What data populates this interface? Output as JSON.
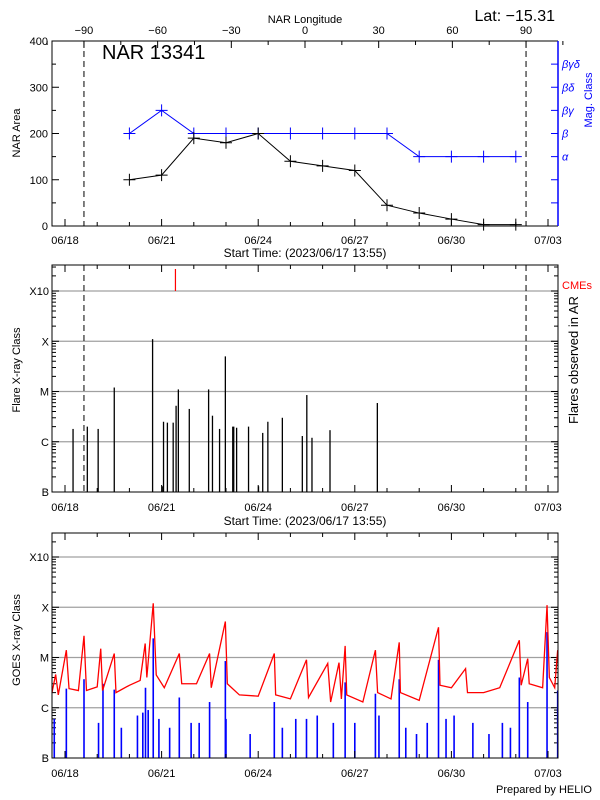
{
  "header": {
    "lat_label": "Lat: −15.31"
  },
  "colors": {
    "area": "#000000",
    "mag_class": "#0000ff",
    "cme": "#ff0000",
    "goes_long": "#ff0000",
    "goes_short": "#0000ff",
    "grid": "#a0a0a0"
  },
  "chart_data": [
    {
      "type": "line",
      "title": "NAR 13341",
      "top_axis_label": "NAR Longitude",
      "top_ticks": [
        -90,
        -60,
        -30,
        0,
        30,
        60,
        90
      ],
      "limb_markers_longitude": [
        -90,
        90
      ],
      "xlabel": "Start Time: (2023/06/17 13:55)",
      "x_tick_labels": [
        "06/18",
        "06/21",
        "06/24",
        "06/27",
        "06/30",
        "07/03"
      ],
      "ylabel": "NAR Area",
      "ylim": [
        0,
        400
      ],
      "y_ticks": [
        0,
        100,
        200,
        300,
        400
      ],
      "y2label": "Mag. Class",
      "y2_ticks": [
        "α",
        "β",
        "βγ",
        "βδ",
        "βγδ"
      ],
      "series": [
        {
          "id": "area",
          "x": [
            "06/20 00:00",
            "06/21 00:00",
            "06/22 00:00",
            "06/23 00:00",
            "06/24 00:00",
            "06/25 00:00",
            "06/26 00:00",
            "06/27 00:00",
            "06/28 00:00",
            "06/29 00:00",
            "06/30 00:00",
            "07/01 00:00",
            "07/02 00:00"
          ],
          "values": [
            100,
            110,
            190,
            180,
            200,
            140,
            130,
            120,
            45,
            28,
            15,
            3,
            3
          ]
        },
        {
          "id": "mag_class",
          "x": [
            "06/20 00:00",
            "06/21 00:00",
            "06/22 00:00",
            "06/23 00:00",
            "06/24 00:00",
            "06/25 00:00",
            "06/26 00:00",
            "06/27 00:00",
            "06/28 00:00",
            "06/29 00:00",
            "06/30 00:00",
            "07/01 00:00",
            "07/02 00:00"
          ],
          "values": [
            "β",
            "βγ",
            "β",
            "β",
            "β",
            "β",
            "β",
            "β",
            "β",
            "α",
            "α",
            "α",
            "α"
          ]
        }
      ]
    },
    {
      "type": "bar",
      "xlabel": "Start Time: (2023/06/17 13:55)",
      "x_tick_labels": [
        "06/18",
        "06/21",
        "06/24",
        "06/27",
        "06/30",
        "07/03"
      ],
      "ylabel": "Flare X-ray Class",
      "y2label": "Flares observed in AR",
      "y_scale": "log",
      "y_ticks": [
        "B",
        "C",
        "M",
        "X",
        "X10"
      ],
      "grid": true,
      "cme_label": "CMEs",
      "cmes": [
        "06/21 10:19"
      ],
      "flares": [
        [
          "06/18 06:00",
          "C1.8"
        ],
        [
          "06/18 16:38",
          "C2.0"
        ],
        [
          "06/19 00:43",
          "C1.8"
        ],
        [
          "06/19 12:43",
          "M1.2"
        ],
        [
          "06/20 17:17",
          "X1.1"
        ],
        [
          "06/21 00:29",
          "B1.3"
        ],
        [
          "06/21 01:26",
          "C2.5"
        ],
        [
          "06/21 04:19",
          "C2.4"
        ],
        [
          "06/21 08:38",
          "C2.4"
        ],
        [
          "06/21 10:48",
          "C5.2"
        ],
        [
          "06/21 12:29",
          "M1.1"
        ],
        [
          "06/21 20:38",
          "C4.5"
        ],
        [
          "06/22 11:02",
          "M1.1"
        ],
        [
          "06/22 13:55",
          "C3.3"
        ],
        [
          "06/22 19:12",
          "C1.8"
        ],
        [
          "06/22 23:31",
          "M5.0"
        ],
        [
          "06/23 05:02",
          "C2.0"
        ],
        [
          "06/23 05:46",
          "C2.0"
        ],
        [
          "06/23 07:55",
          "C1.9"
        ],
        [
          "06/23 16:48",
          "C2.0"
        ],
        [
          "06/24 00:14",
          "B1.3"
        ],
        [
          "06/24 03:22",
          "C1.5"
        ],
        [
          "06/24 07:12",
          "C2.5"
        ],
        [
          "06/24 18:00",
          "C3.0"
        ],
        [
          "06/25 08:53",
          "C1.3"
        ],
        [
          "06/25 12:14",
          "C8.5"
        ],
        [
          "06/25 16:05",
          "C1.2"
        ],
        [
          "06/26 05:31",
          "C1.7"
        ],
        [
          "06/27 16:48",
          "C5.9"
        ]
      ]
    },
    {
      "type": "line",
      "x_tick_labels": [
        "06/18",
        "06/21",
        "06/24",
        "06/27",
        "06/30",
        "07/03"
      ],
      "ylabel": "GOES X-ray Class",
      "y_scale": "log",
      "y_ticks": [
        "B",
        "C",
        "M",
        "X",
        "X10"
      ],
      "grid": true,
      "credit": "Prepared by HELIO",
      "long_channel": [
        [
          "06/17 14:00",
          "C2.0"
        ],
        [
          "06/17 17:02",
          "C4.6"
        ],
        [
          "06/17 19:00",
          "C1.8"
        ],
        [
          "06/18 01:00",
          "M1.4"
        ],
        [
          "06/18 03:00",
          "C2.4"
        ],
        [
          "06/18 10:00",
          "C2.2"
        ],
        [
          "06/18 14:10",
          "M2.7"
        ],
        [
          "06/18 16:00",
          "C2.2"
        ],
        [
          "06/19 00:00",
          "C2.6"
        ],
        [
          "06/19 02:38",
          "M1.5"
        ],
        [
          "06/19 04:00",
          "C2.2"
        ],
        [
          "06/19 12:43",
          "M1.2"
        ],
        [
          "06/19 14:00",
          "C2.0"
        ],
        [
          "06/20 00:00",
          "C2.8"
        ],
        [
          "06/20 08:00",
          "C3.5"
        ],
        [
          "06/20 11:46",
          "M1.9"
        ],
        [
          "06/20 13:00",
          "C4.0"
        ],
        [
          "06/20 17:46",
          "X1.2"
        ],
        [
          "06/20 20:00",
          "C4.5"
        ],
        [
          "06/21 02:00",
          "C2.5"
        ],
        [
          "06/21 13:12",
          "M1.2"
        ],
        [
          "06/21 15:00",
          "C3.0"
        ],
        [
          "06/22 02:00",
          "C3.0"
        ],
        [
          "06/22 11:46",
          "M1.2"
        ],
        [
          "06/22 13:00",
          "C2.5"
        ],
        [
          "06/22 23:31",
          "M5.2"
        ],
        [
          "06/23 01:00",
          "C3.0"
        ],
        [
          "06/23 10:00",
          "C1.8"
        ],
        [
          "06/24 00:00",
          "C1.7"
        ],
        [
          "06/24 12:00",
          "M1.2"
        ],
        [
          "06/24 13:00",
          "C1.8"
        ],
        [
          "06/25 00:00",
          "C1.5"
        ],
        [
          "06/25 12:00",
          "C9.0"
        ],
        [
          "06/25 13:30",
          "C1.6"
        ],
        [
          "06/26 03:50",
          "C7.6"
        ],
        [
          "06/26 06:00",
          "C1.3"
        ],
        [
          "06/26 12:14",
          "C7.9"
        ],
        [
          "06/26 14:00",
          "C1.5"
        ],
        [
          "06/26 16:48",
          "M1.7"
        ],
        [
          "06/26 18:00",
          "C1.8"
        ],
        [
          "06/27 06:00",
          "C1.3"
        ],
        [
          "06/27 15:22",
          "M1.4"
        ],
        [
          "06/27 17:00",
          "C2.0"
        ],
        [
          "06/28 03:00",
          "C1.5"
        ],
        [
          "06/28 09:07",
          "M2.0"
        ],
        [
          "06/28 10:00",
          "C2.0"
        ],
        [
          "06/29 00:00",
          "C1.4"
        ],
        [
          "06/29 14:24",
          "M4.0"
        ],
        [
          "06/29 15:30",
          "C2.8"
        ],
        [
          "06/30 00:00",
          "C2.5"
        ],
        [
          "06/30 10:34",
          "C6.0"
        ],
        [
          "06/30 12:00",
          "C2.0"
        ],
        [
          "07/01 00:00",
          "C2.0"
        ],
        [
          "07/01 12:00",
          "C2.5"
        ],
        [
          "07/02 02:38",
          "M2.2"
        ],
        [
          "07/02 04:00",
          "C2.8"
        ],
        [
          "07/02 08:53",
          "C9.5"
        ],
        [
          "07/02 10:00",
          "C3.0"
        ],
        [
          "07/02 20:00",
          "C2.5"
        ],
        [
          "07/02 23:17",
          "X1.1"
        ],
        [
          "07/03 01:00",
          "C4.0"
        ],
        [
          "07/03 05:00",
          "C2.5"
        ],
        [
          "07/03 07:12",
          "M1.4"
        ]
      ],
      "short_channel_peaks": [
        [
          "06/17 16:00",
          "B6"
        ],
        [
          "06/18 01:00",
          "C2.4"
        ],
        [
          "06/18 14:10",
          "C3.7"
        ],
        [
          "06/19 01:00",
          "B5"
        ],
        [
          "06/19 04:19",
          "C3.0"
        ],
        [
          "06/19 12:43",
          "C2.3"
        ],
        [
          "06/19 18:00",
          "B4"
        ],
        [
          "06/20 06:00",
          "B7"
        ],
        [
          "06/20 10:00",
          "B8"
        ],
        [
          "06/20 12:00",
          "C2.5"
        ],
        [
          "06/20 14:00",
          "B9"
        ],
        [
          "06/20 17:46",
          "M2.4"
        ],
        [
          "06/20 22:00",
          "B6"
        ],
        [
          "06/21 06:00",
          "B4"
        ],
        [
          "06/21 13:12",
          "C1.6"
        ],
        [
          "06/21 22:00",
          "B5"
        ],
        [
          "06/22 04:00",
          "B5"
        ],
        [
          "06/22 11:46",
          "C1.3"
        ],
        [
          "06/22 23:31",
          "C8.5"
        ],
        [
          "06/23 00:00",
          "B6"
        ],
        [
          "06/23 18:00",
          "B3"
        ],
        [
          "06/24 12:00",
          "C1.3"
        ],
        [
          "06/24 18:00",
          "B4"
        ],
        [
          "06/25 04:00",
          "B6"
        ],
        [
          "06/25 12:00",
          "B6"
        ],
        [
          "06/25 20:00",
          "B7"
        ],
        [
          "06/26 08:00",
          "B5"
        ],
        [
          "06/26 16:48",
          "C3.2"
        ],
        [
          "06/27 00:00",
          "B5"
        ],
        [
          "06/27 15:22",
          "C1.9"
        ],
        [
          "06/27 18:00",
          "B7"
        ],
        [
          "06/28 09:07",
          "C3.7"
        ],
        [
          "06/28 14:00",
          "B4"
        ],
        [
          "06/28 22:00",
          "B3"
        ],
        [
          "06/29 06:00",
          "B5"
        ],
        [
          "06/29 14:24",
          "C9.0"
        ],
        [
          "06/29 20:00",
          "B6"
        ],
        [
          "06/30 02:00",
          "B7"
        ],
        [
          "06/30 16:00",
          "B5"
        ],
        [
          "07/01 04:00",
          "B3"
        ],
        [
          "07/01 14:00",
          "B5"
        ],
        [
          "07/01 20:00",
          "B4"
        ],
        [
          "07/02 02:38",
          "C4.0"
        ],
        [
          "07/02 08:53",
          "C1.3"
        ],
        [
          "07/02 23:17",
          "M3.2"
        ],
        [
          "07/03 07:12",
          "C2.2"
        ]
      ]
    }
  ]
}
